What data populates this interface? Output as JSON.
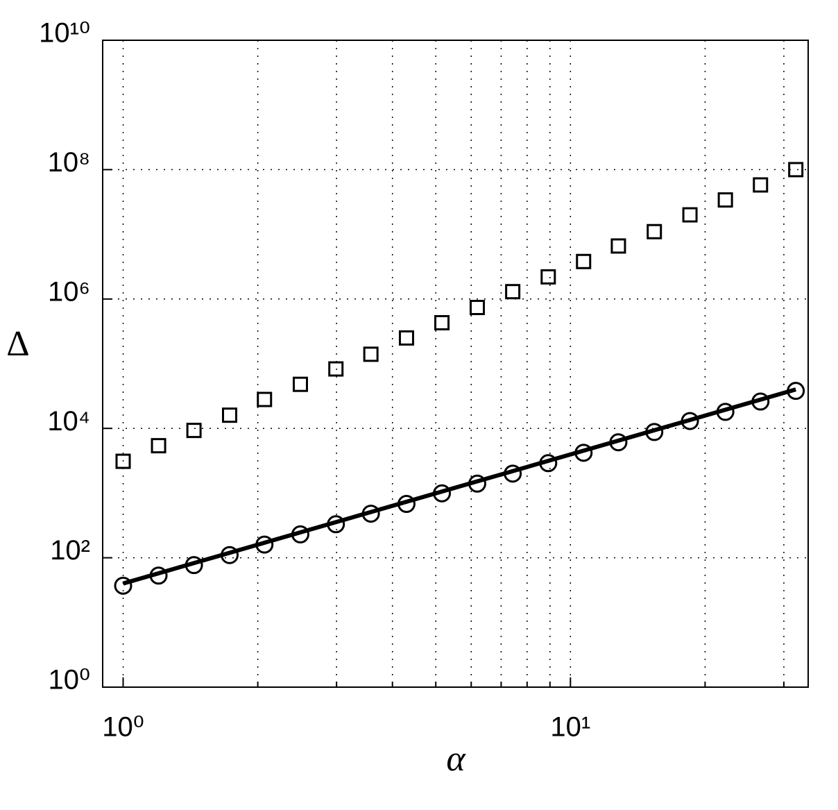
{
  "chart_data": {
    "type": "scatter",
    "xlabel": "α",
    "ylabel": "Δ",
    "x": [
      1,
      1.2,
      1.44,
      1.73,
      2.07,
      2.49,
      2.99,
      3.58,
      4.3,
      5.16,
      6.19,
      7.43,
      8.92,
      10.7,
      12.8,
      15.4,
      18.5,
      22.2,
      26.6,
      31.9
    ],
    "series": [
      {
        "type": "scatter",
        "marker": "square",
        "color": "#000000",
        "values": [
          3100,
          5400,
          9300,
          16000,
          28000,
          48000,
          83000,
          140000,
          250000,
          430000,
          740000,
          1300000,
          2200000,
          3800000,
          6600000,
          11000000,
          20000000,
          34000000,
          58000000,
          100000000
        ]
      },
      {
        "type": "scatter",
        "marker": "circle",
        "color": "#000000",
        "values": [
          37,
          53,
          77,
          110,
          160,
          230,
          330,
          480,
          680,
          990,
          1400,
          2000,
          2900,
          4200,
          6100,
          8800,
          13000,
          18000,
          26000,
          38000
        ]
      },
      {
        "type": "line",
        "color": "#000000",
        "x": [
          1,
          31.9
        ],
        "values": [
          40,
          40000
        ]
      }
    ],
    "xscale": "log",
    "yscale": "log",
    "xlim": [
      0.9,
      34
    ],
    "ylim": [
      1,
      10000000000
    ],
    "xticks": [
      {
        "value": 1,
        "label": "10⁰"
      },
      {
        "value": 10,
        "label": "10¹"
      }
    ],
    "xminorticks": [
      2,
      3,
      4,
      5,
      6,
      7,
      8,
      9,
      20,
      30
    ],
    "yticks": [
      {
        "value": 1,
        "label": "10⁰"
      },
      {
        "value": 100,
        "label": "10²"
      },
      {
        "value": 10000,
        "label": "10⁴"
      },
      {
        "value": 1000000,
        "label": "10⁶"
      },
      {
        "value": 100000000,
        "label": "10⁸"
      },
      {
        "value": 10000000000,
        "label": "10¹⁰"
      }
    ],
    "grid": true
  }
}
